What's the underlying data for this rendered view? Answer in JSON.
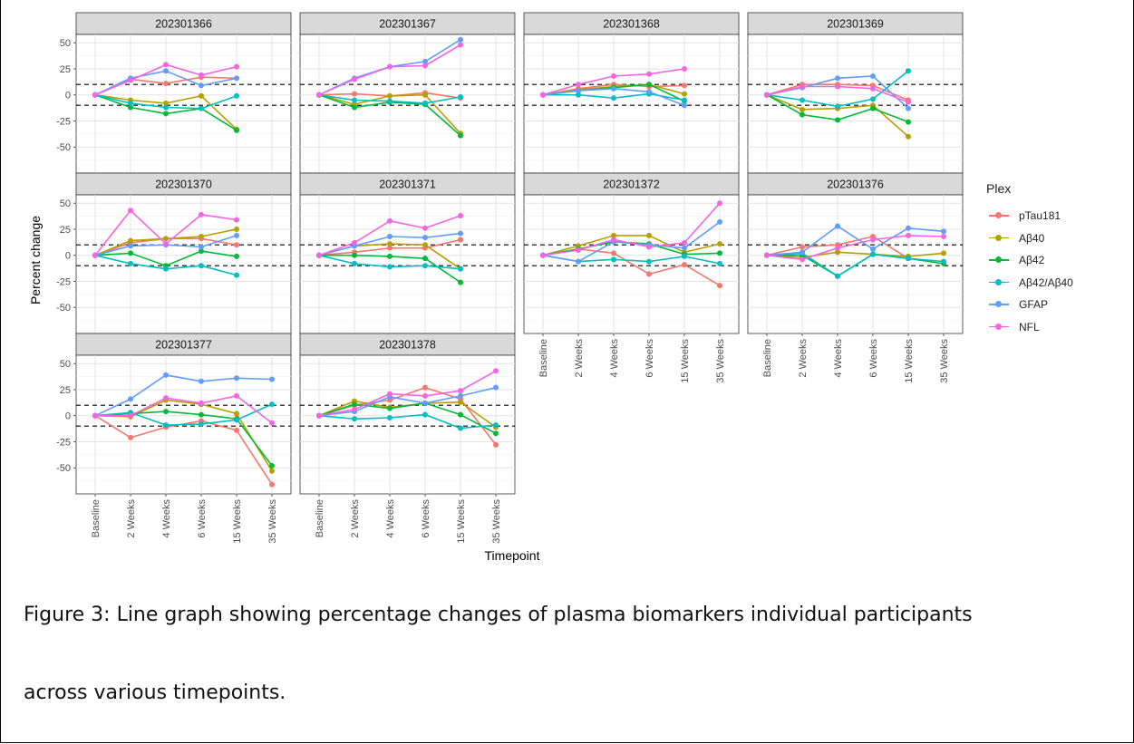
{
  "chart_data": {
    "type": "line",
    "ylabel": "Percent change",
    "xlabel": "Timepoint",
    "legend": {
      "title": "Plex",
      "placement": "right"
    },
    "categories": [
      "Baseline",
      "2 Weeks",
      "4 Weeks",
      "6 Weeks",
      "15 Weeks",
      "35 Weeks"
    ],
    "y_ticks": [
      -50,
      -25,
      0,
      25,
      50
    ],
    "ylim": [
      -75,
      58
    ],
    "reference_lines": [
      10,
      -10
    ],
    "series_names": [
      "pTau181",
      "Aβ40",
      "Aβ42",
      "Aβ42/Aβ40",
      "GFAP",
      "NFL"
    ],
    "colors": {
      "pTau181": "#F8766D",
      "Aβ40": "#B79F00",
      "Aβ42": "#00BA38",
      "Aβ42/Aβ40": "#00BFC4",
      "GFAP": "#619CFF",
      "NFL": "#F564E3"
    },
    "panels": [
      {
        "title": "202301366",
        "series": {
          "pTau181": [
            0,
            15,
            11,
            17,
            16,
            null
          ],
          "Aβ40": [
            0,
            -5,
            -8,
            -1,
            -33,
            null
          ],
          "Aβ42": [
            0,
            -12,
            -18,
            -13,
            -34,
            null
          ],
          "Aβ42/Aβ40": [
            0,
            -8,
            -12,
            -13,
            -1,
            null
          ],
          "GFAP": [
            0,
            16,
            23,
            9,
            16,
            null
          ],
          "NFL": [
            0,
            14,
            29,
            19,
            27,
            null
          ]
        }
      },
      {
        "title": "202301367",
        "series": {
          "pTau181": [
            0,
            1,
            -1,
            2,
            -3,
            null
          ],
          "Aβ40": [
            0,
            -9,
            -1,
            0,
            -37,
            null
          ],
          "Aβ42": [
            0,
            -12,
            -7,
            -9,
            -39,
            null
          ],
          "Aβ42/Aβ40": [
            0,
            -5,
            -6,
            -8,
            -2,
            null
          ],
          "GFAP": [
            0,
            16,
            27,
            32,
            53,
            null
          ],
          "NFL": [
            0,
            15,
            27,
            28,
            48,
            null
          ]
        }
      },
      {
        "title": "202301368",
        "series": {
          "pTau181": [
            0,
            6,
            10,
            8,
            9,
            null
          ],
          "Aβ40": [
            0,
            5,
            8,
            10,
            1,
            null
          ],
          "Aβ42": [
            0,
            4,
            7,
            10,
            -6,
            null
          ],
          "Aβ42/Aβ40": [
            0,
            0,
            -3,
            1,
            -5,
            null
          ],
          "GFAP": [
            0,
            4,
            6,
            3,
            -10,
            null
          ],
          "NFL": [
            0,
            10,
            18,
            20,
            25,
            null
          ]
        }
      },
      {
        "title": "202301369",
        "series": {
          "pTau181": [
            0,
            10,
            10,
            9,
            -5,
            null
          ],
          "Aβ40": [
            0,
            -14,
            -13,
            -10,
            -40,
            null
          ],
          "Aβ42": [
            0,
            -19,
            -24,
            -13,
            -26,
            null
          ],
          "Aβ42/Aβ40": [
            0,
            -5,
            -11,
            -4,
            23,
            null
          ],
          "GFAP": [
            0,
            7,
            16,
            18,
            -13,
            null
          ],
          "NFL": [
            0,
            8,
            8,
            6,
            -7,
            null
          ]
        }
      },
      {
        "title": "202301370",
        "series": {
          "pTau181": [
            0,
            12,
            16,
            16,
            10,
            null
          ],
          "Aβ40": [
            0,
            14,
            16,
            18,
            25,
            null
          ],
          "Aβ42": [
            0,
            2,
            -10,
            4,
            -1,
            null
          ],
          "Aβ42/Aβ40": [
            0,
            -8,
            -13,
            -10,
            -19,
            null
          ],
          "GFAP": [
            0,
            9,
            10,
            8,
            19,
            null
          ],
          "NFL": [
            0,
            43,
            11,
            39,
            34,
            null
          ]
        }
      },
      {
        "title": "202301371",
        "series": {
          "pTau181": [
            0,
            3,
            7,
            7,
            15,
            null
          ],
          "Aβ40": [
            0,
            9,
            11,
            10,
            -13,
            null
          ],
          "Aβ42": [
            0,
            0,
            -1,
            -3,
            -26,
            null
          ],
          "Aβ42/Aβ40": [
            0,
            -8,
            -11,
            -10,
            -13,
            null
          ],
          "GFAP": [
            0,
            9,
            18,
            17,
            21,
            null
          ],
          "NFL": [
            0,
            12,
            33,
            26,
            38,
            null
          ]
        }
      },
      {
        "title": "202301372",
        "series": {
          "pTau181": [
            0,
            6,
            2,
            -18,
            -9,
            -29
          ],
          "Aβ40": [
            0,
            9,
            19,
            19,
            3,
            11
          ],
          "Aβ42": [
            0,
            6,
            13,
            11,
            1,
            2
          ],
          "Aβ42/Aβ40": [
            0,
            -6,
            -4,
            -6,
            -1,
            -8
          ],
          "GFAP": [
            0,
            -6,
            13,
            10,
            7,
            32
          ],
          "NFL": [
            0,
            5,
            15,
            8,
            12,
            50
          ]
        }
      },
      {
        "title": "202301376",
        "series": {
          "pTau181": [
            0,
            8,
            10,
            18,
            -3,
            null
          ],
          "Aβ40": [
            0,
            -2,
            3,
            1,
            -1,
            2
          ],
          "Aβ42": [
            0,
            0,
            -20,
            1,
            -3,
            -8
          ],
          "Aβ42/Aβ40": [
            0,
            2,
            -20,
            1,
            -3,
            -6
          ],
          "GFAP": [
            0,
            3,
            28,
            6,
            26,
            23
          ],
          "NFL": [
            0,
            -4,
            7,
            15,
            19,
            18
          ]
        }
      },
      {
        "title": "202301377",
        "series": {
          "pTau181": [
            0,
            -21,
            -11,
            -5,
            -14,
            -66
          ],
          "Aβ40": [
            0,
            -1,
            15,
            11,
            2,
            -53
          ],
          "Aβ42": [
            0,
            2,
            4,
            1,
            -3,
            -48
          ],
          "Aβ42/Aβ40": [
            0,
            3,
            -9,
            -8,
            -4,
            11
          ],
          "GFAP": [
            0,
            16,
            39,
            33,
            36,
            35
          ],
          "NFL": [
            0,
            0,
            17,
            12,
            19,
            -7
          ]
        }
      },
      {
        "title": "202301378",
        "series": {
          "pTau181": [
            0,
            10,
            15,
            27,
            16,
            -28
          ],
          "Aβ40": [
            0,
            14,
            8,
            12,
            13,
            -11
          ],
          "Aβ42": [
            0,
            11,
            7,
            12,
            1,
            -17
          ],
          "Aβ42/Aβ40": [
            0,
            -3,
            -2,
            1,
            -12,
            -9
          ],
          "GFAP": [
            0,
            4,
            18,
            12,
            19,
            27
          ],
          "NFL": [
            0,
            6,
            21,
            19,
            24,
            43
          ]
        }
      }
    ]
  },
  "caption": {
    "line1": "Figure 3: Line graph showing percentage changes of plasma biomarkers individual participants",
    "line2": "across various timepoints."
  }
}
